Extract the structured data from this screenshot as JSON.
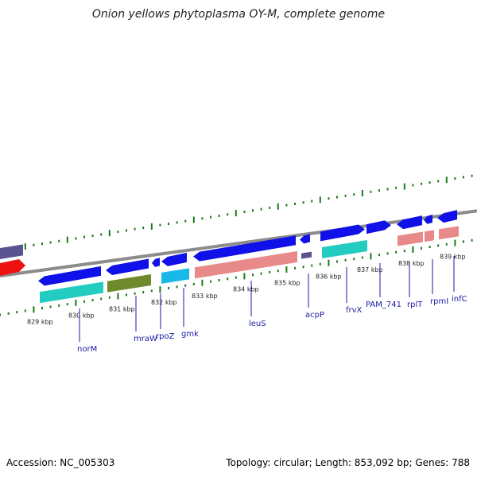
{
  "title": "Onion yellows phytoplasma OY-M, complete genome",
  "footer": {
    "accession": "Accession: NC_005303",
    "stats": "Topology: circular; Length: 853,092 bp; Genes: 788"
  },
  "kbp_labels": [
    "829 kbp",
    "830 kbp",
    "831 kbp",
    "832 kbp",
    "833 kbp",
    "834 kbp",
    "835 kbp",
    "836 kbp",
    "837 kbp",
    "838 kbp",
    "839 kbp"
  ],
  "genes": [
    {
      "name": "norM"
    },
    {
      "name": "mraW"
    },
    {
      "name": "rpoZ"
    },
    {
      "name": "gmk"
    },
    {
      "name": "leuS"
    },
    {
      "name": "acpP"
    },
    {
      "name": "frvX"
    },
    {
      "name": "PAM_741"
    },
    {
      "name": "rplT"
    },
    {
      "name": "rpmI"
    },
    {
      "name": "infC"
    }
  ],
  "colors": {
    "cds": "#1010e8",
    "backbone": "#8c8c8c",
    "tick": "#1a7a1a",
    "label": "#1a1aa6",
    "rna_pink": "#e88a8a",
    "teal": "#22ccc0",
    "green": "#6e8a2a",
    "cyan": "#1ab8e8",
    "red": "#ee1111",
    "slate": "#5a5590"
  }
}
